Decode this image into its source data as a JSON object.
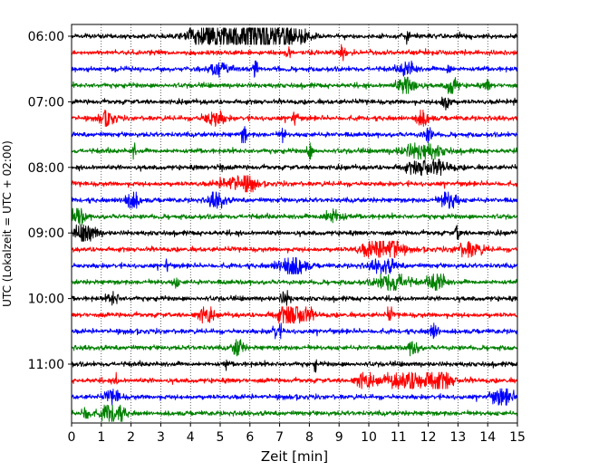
{
  "chart_data": {
    "type": "line",
    "title": "",
    "xlabel": "Zeit  [min]",
    "ylabel": "UTC (Lokalzeit = UTC + 02:00)",
    "xlim": [
      0,
      15
    ],
    "x_ticks": [
      0,
      1,
      2,
      3,
      4,
      5,
      6,
      7,
      8,
      9,
      10,
      11,
      12,
      13,
      14,
      15
    ],
    "y_ticks": [
      "06:00",
      "07:00",
      "08:00",
      "09:00",
      "10:00",
      "11:00"
    ],
    "x_grid": "dotted vertical lines at each minute",
    "trace_colors": [
      "#000000",
      "#ff0000",
      "#0000ff",
      "#008000"
    ],
    "trace_minutes": 15,
    "traces": [
      {
        "time": "06:00",
        "color": "#000000",
        "events": [
          [
            4.6,
            2.6,
            0.9
          ],
          [
            6.6,
            3.6,
            1.2
          ],
          [
            5.8,
            1.5,
            1.0
          ],
          [
            11.3,
            1.5,
            0.1
          ]
        ]
      },
      {
        "time": "06:15",
        "color": "#ff0000",
        "events": [
          [
            7.3,
            1.3,
            0.1
          ],
          [
            9.1,
            2.3,
            0.1
          ]
        ]
      },
      {
        "time": "06:30",
        "color": "#0000ff",
        "events": [
          [
            5.0,
            1.8,
            0.3
          ],
          [
            6.2,
            2.5,
            0.1
          ],
          [
            11.3,
            1.6,
            0.3
          ],
          [
            12.7,
            1.5,
            0.1
          ]
        ]
      },
      {
        "time": "06:45",
        "color": "#008000",
        "events": [
          [
            11.3,
            2.0,
            0.4
          ],
          [
            12.8,
            2.4,
            0.2
          ],
          [
            14.0,
            1.3,
            0.1
          ]
        ]
      },
      {
        "time": "07:00",
        "color": "#000000",
        "events": [
          [
            12.6,
            1.8,
            0.2
          ],
          [
            14.9,
            2.0,
            0.05
          ]
        ]
      },
      {
        "time": "07:15",
        "color": "#ff0000",
        "events": [
          [
            1.2,
            1.4,
            0.3
          ],
          [
            4.8,
            1.6,
            0.4
          ],
          [
            7.5,
            2.0,
            0.1
          ],
          [
            11.8,
            1.5,
            0.3
          ]
        ]
      },
      {
        "time": "07:30",
        "color": "#0000ff",
        "events": [
          [
            5.8,
            2.4,
            0.1
          ],
          [
            7.1,
            1.4,
            0.1
          ],
          [
            12.0,
            1.4,
            0.2
          ]
        ]
      },
      {
        "time": "07:45",
        "color": "#008000",
        "events": [
          [
            2.1,
            2.6,
            0.05
          ],
          [
            8.0,
            2.2,
            0.1
          ],
          [
            11.8,
            1.6,
            0.8
          ]
        ]
      },
      {
        "time": "08:00",
        "color": "#000000",
        "events": [
          [
            5.0,
            1.5,
            0.1
          ],
          [
            12.0,
            1.7,
            0.8
          ]
        ]
      },
      {
        "time": "08:15",
        "color": "#ff0000",
        "events": [
          [
            5.5,
            1.5,
            0.6
          ],
          [
            6.0,
            1.6,
            0.2
          ]
        ]
      },
      {
        "time": "08:30",
        "color": "#0000ff",
        "events": [
          [
            2.0,
            2.0,
            0.3
          ],
          [
            4.9,
            2.0,
            0.3
          ],
          [
            12.7,
            2.4,
            0.3
          ]
        ]
      },
      {
        "time": "08:45",
        "color": "#008000",
        "events": [
          [
            0.2,
            2.0,
            0.3
          ],
          [
            8.8,
            1.4,
            0.4
          ]
        ]
      },
      {
        "time": "09:00",
        "color": "#000000",
        "events": [
          [
            0.5,
            2.0,
            0.4
          ],
          [
            13.0,
            1.8,
            0.1
          ]
        ]
      },
      {
        "time": "09:15",
        "color": "#ff0000",
        "events": [
          [
            10.4,
            2.4,
            0.7
          ],
          [
            10.9,
            2.0,
            0.2
          ],
          [
            13.4,
            1.4,
            0.5
          ]
        ]
      },
      {
        "time": "09:30",
        "color": "#0000ff",
        "events": [
          [
            3.2,
            2.2,
            0.05
          ],
          [
            7.4,
            2.8,
            0.5
          ],
          [
            10.5,
            1.4,
            0.5
          ]
        ]
      },
      {
        "time": "09:45",
        "color": "#008000",
        "events": [
          [
            3.5,
            1.4,
            0.1
          ],
          [
            10.8,
            2.0,
            0.6
          ],
          [
            12.3,
            2.4,
            0.3
          ]
        ]
      },
      {
        "time": "10:00",
        "color": "#000000",
        "events": [
          [
            1.4,
            1.4,
            0.2
          ],
          [
            7.2,
            1.3,
            0.2
          ]
        ]
      },
      {
        "time": "10:15",
        "color": "#ff0000",
        "events": [
          [
            4.5,
            1.5,
            0.3
          ],
          [
            7.5,
            3.0,
            0.6
          ],
          [
            10.7,
            1.6,
            0.1
          ]
        ]
      },
      {
        "time": "10:30",
        "color": "#0000ff",
        "events": [
          [
            6.9,
            1.5,
            0.2
          ],
          [
            12.2,
            1.5,
            0.2
          ]
        ]
      },
      {
        "time": "10:45",
        "color": "#008000",
        "events": [
          [
            5.6,
            2.2,
            0.2
          ],
          [
            11.5,
            1.8,
            0.2
          ]
        ]
      },
      {
        "time": "11:00",
        "color": "#000000",
        "events": [
          [
            5.2,
            1.6,
            0.05
          ],
          [
            8.2,
            1.4,
            0.05
          ]
        ]
      },
      {
        "time": "11:15",
        "color": "#ff0000",
        "events": [
          [
            1.5,
            2.2,
            0.05
          ],
          [
            9.8,
            1.5,
            0.3
          ],
          [
            11.5,
            1.8,
            1.2
          ],
          [
            12.4,
            1.8,
            0.4
          ]
        ]
      },
      {
        "time": "11:30",
        "color": "#0000ff",
        "events": [
          [
            1.4,
            1.4,
            0.3
          ],
          [
            14.5,
            2.0,
            0.4
          ]
        ]
      },
      {
        "time": "11:45",
        "color": "#008000",
        "events": [
          [
            1.4,
            2.8,
            0.4
          ],
          [
            0.5,
            1.3,
            0.2
          ]
        ]
      }
    ]
  }
}
